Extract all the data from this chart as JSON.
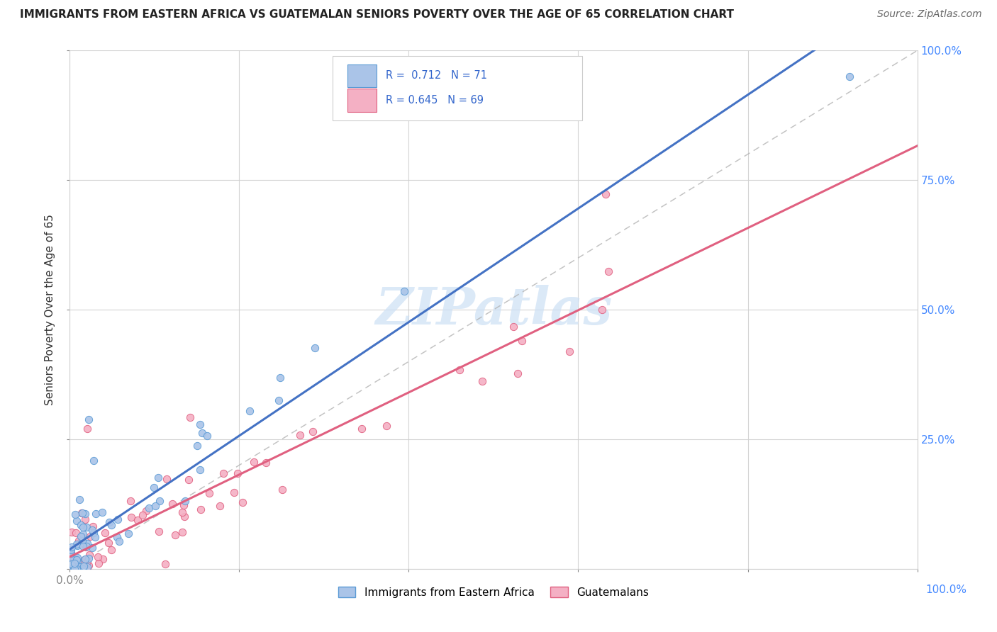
{
  "title": "IMMIGRANTS FROM EASTERN AFRICA VS GUATEMALAN SENIORS POVERTY OVER THE AGE OF 65 CORRELATION CHART",
  "source": "Source: ZipAtlas.com",
  "ylabel": "Seniors Poverty Over the Age of 65",
  "series1": {
    "name": "Immigrants from Eastern Africa",
    "scatter_color": "#aac4e8",
    "scatter_edge": "#5b9bd5",
    "line_color": "#4472c4",
    "R": 0.712,
    "N": 71
  },
  "series2": {
    "name": "Guatemalans",
    "scatter_color": "#f4b0c4",
    "scatter_edge": "#e06080",
    "line_color": "#e06080",
    "R": 0.645,
    "N": 69
  },
  "bg_color": "#ffffff",
  "grid_color": "#d0d0d0",
  "diag_color": "#b0b0b0",
  "right_tick_color": "#4488ff",
  "legend_text_color": "#3366cc",
  "watermark_text": "ZIPatlas",
  "watermark_color": "#cce0f5"
}
